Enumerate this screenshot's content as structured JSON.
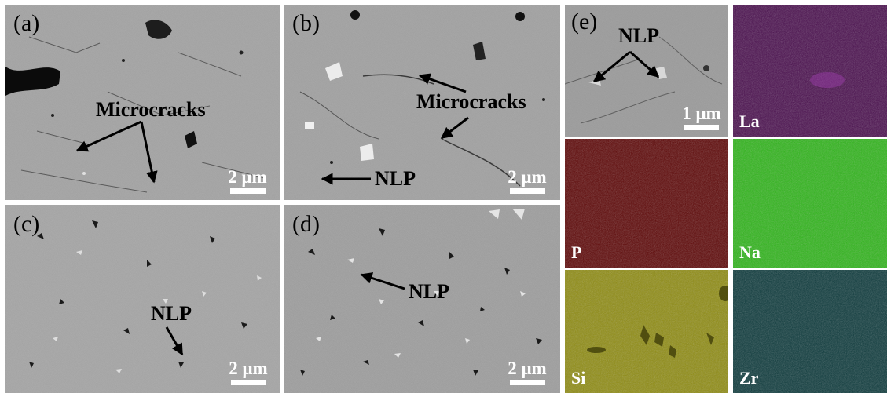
{
  "panels": {
    "a": {
      "label": "(a)",
      "annotation": "Microcracks",
      "scale": "2 μm"
    },
    "b": {
      "label": "(b)",
      "annotations": [
        "Microcracks",
        "NLP"
      ],
      "scale": "2 μm"
    },
    "c": {
      "label": "(c)",
      "annotation": "NLP",
      "scale": "2 μm"
    },
    "d": {
      "label": "(d)",
      "annotation": "NLP",
      "scale": "2 μm"
    },
    "e": {
      "label": "(e)",
      "annotation": "NLP",
      "scale": "1 μm"
    }
  },
  "element_maps": [
    {
      "element": "La",
      "color": "#4a0f4e"
    },
    {
      "element": "P",
      "color": "#5e0707"
    },
    {
      "element": "Na",
      "color": "#2fb51a"
    },
    {
      "element": "Si",
      "color": "#8f8c12"
    },
    {
      "element": "Zr",
      "color": "#0d3a3c"
    }
  ],
  "colors": {
    "sem_gray": "#9e9e9e",
    "arrow": "#000000",
    "scale_bar": "#ffffff"
  }
}
